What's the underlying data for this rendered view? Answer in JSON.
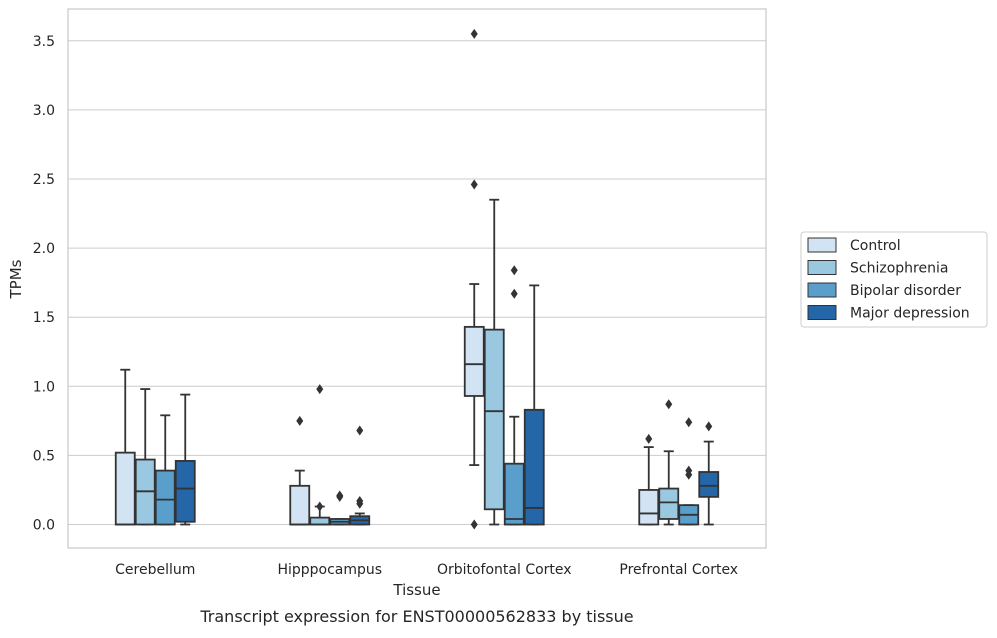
{
  "chart_data": {
    "type": "boxplot",
    "xlabel": "Tissue",
    "ylabel": "TPMs",
    "caption": "Transcript expression for ENST00000562833 by tissue",
    "ylim": [
      -0.17,
      3.73
    ],
    "yticks": [
      "0.0",
      "0.5",
      "1.0",
      "1.5",
      "2.0",
      "2.5",
      "3.0",
      "3.5"
    ],
    "grid": "horizontal",
    "legend_position": "outside-right",
    "categories": [
      "Cerebellum",
      "Hipppocampus",
      "Orbitofontal Cortex",
      "Prefrontal Cortex"
    ],
    "series": [
      {
        "name": "Control",
        "color": "#d2e3f3",
        "boxes": [
          {
            "whislo": 0.0,
            "q1": 0.0,
            "med": 0.0,
            "q3": 0.52,
            "whishi": 1.12,
            "fliers": []
          },
          {
            "whislo": 0.0,
            "q1": 0.0,
            "med": 0.0,
            "q3": 0.28,
            "whishi": 0.39,
            "fliers": [
              0.75
            ]
          },
          {
            "whislo": 0.43,
            "q1": 0.93,
            "med": 1.16,
            "q3": 1.43,
            "whishi": 1.74,
            "fliers": [
              0.0,
              2.46,
              3.55
            ]
          },
          {
            "whislo": 0.0,
            "q1": 0.0,
            "med": 0.08,
            "q3": 0.25,
            "whishi": 0.56,
            "fliers": [
              0.62
            ]
          }
        ]
      },
      {
        "name": "Schizophrenia",
        "color": "#9ac8e0",
        "boxes": [
          {
            "whislo": 0.0,
            "q1": 0.0,
            "med": 0.24,
            "q3": 0.47,
            "whishi": 0.98,
            "fliers": []
          },
          {
            "whislo": 0.0,
            "q1": 0.0,
            "med": 0.0,
            "q3": 0.05,
            "whishi": 0.13,
            "fliers": [
              0.13,
              0.98
            ]
          },
          {
            "whislo": 0.0,
            "q1": 0.11,
            "med": 0.82,
            "q3": 1.41,
            "whishi": 2.35,
            "fliers": []
          },
          {
            "whislo": 0.0,
            "q1": 0.04,
            "med": 0.16,
            "q3": 0.26,
            "whishi": 0.53,
            "fliers": [
              0.87
            ]
          }
        ]
      },
      {
        "name": "Bipolar disorder",
        "color": "#5a9fcb",
        "boxes": [
          {
            "whislo": 0.0,
            "q1": 0.0,
            "med": 0.18,
            "q3": 0.39,
            "whishi": 0.79,
            "fliers": []
          },
          {
            "whislo": 0.0,
            "q1": 0.0,
            "med": 0.02,
            "q3": 0.04,
            "whishi": 0.04,
            "fliers": [
              0.2,
              0.21
            ]
          },
          {
            "whislo": 0.0,
            "q1": 0.0,
            "med": 0.04,
            "q3": 0.44,
            "whishi": 0.78,
            "fliers": [
              1.67,
              1.84
            ]
          },
          {
            "whislo": 0.0,
            "q1": 0.0,
            "med": 0.07,
            "q3": 0.14,
            "whishi": 0.14,
            "fliers": [
              0.36,
              0.39,
              0.74
            ]
          }
        ]
      },
      {
        "name": "Major depression",
        "color": "#2566a8",
        "boxes": [
          {
            "whislo": 0.0,
            "q1": 0.02,
            "med": 0.26,
            "q3": 0.46,
            "whishi": 0.94,
            "fliers": []
          },
          {
            "whislo": 0.0,
            "q1": 0.0,
            "med": 0.03,
            "q3": 0.06,
            "whishi": 0.08,
            "fliers": [
              0.15,
              0.17,
              0.68
            ]
          },
          {
            "whislo": 0.0,
            "q1": 0.0,
            "med": 0.12,
            "q3": 0.83,
            "whishi": 1.73,
            "fliers": []
          },
          {
            "whislo": 0.0,
            "q1": 0.2,
            "med": 0.28,
            "q3": 0.38,
            "whishi": 0.6,
            "fliers": [
              0.71
            ]
          }
        ]
      }
    ]
  },
  "colors": {
    "frame": "#c8c8c8",
    "grid": "#cccccc",
    "stroke": "#333333"
  }
}
